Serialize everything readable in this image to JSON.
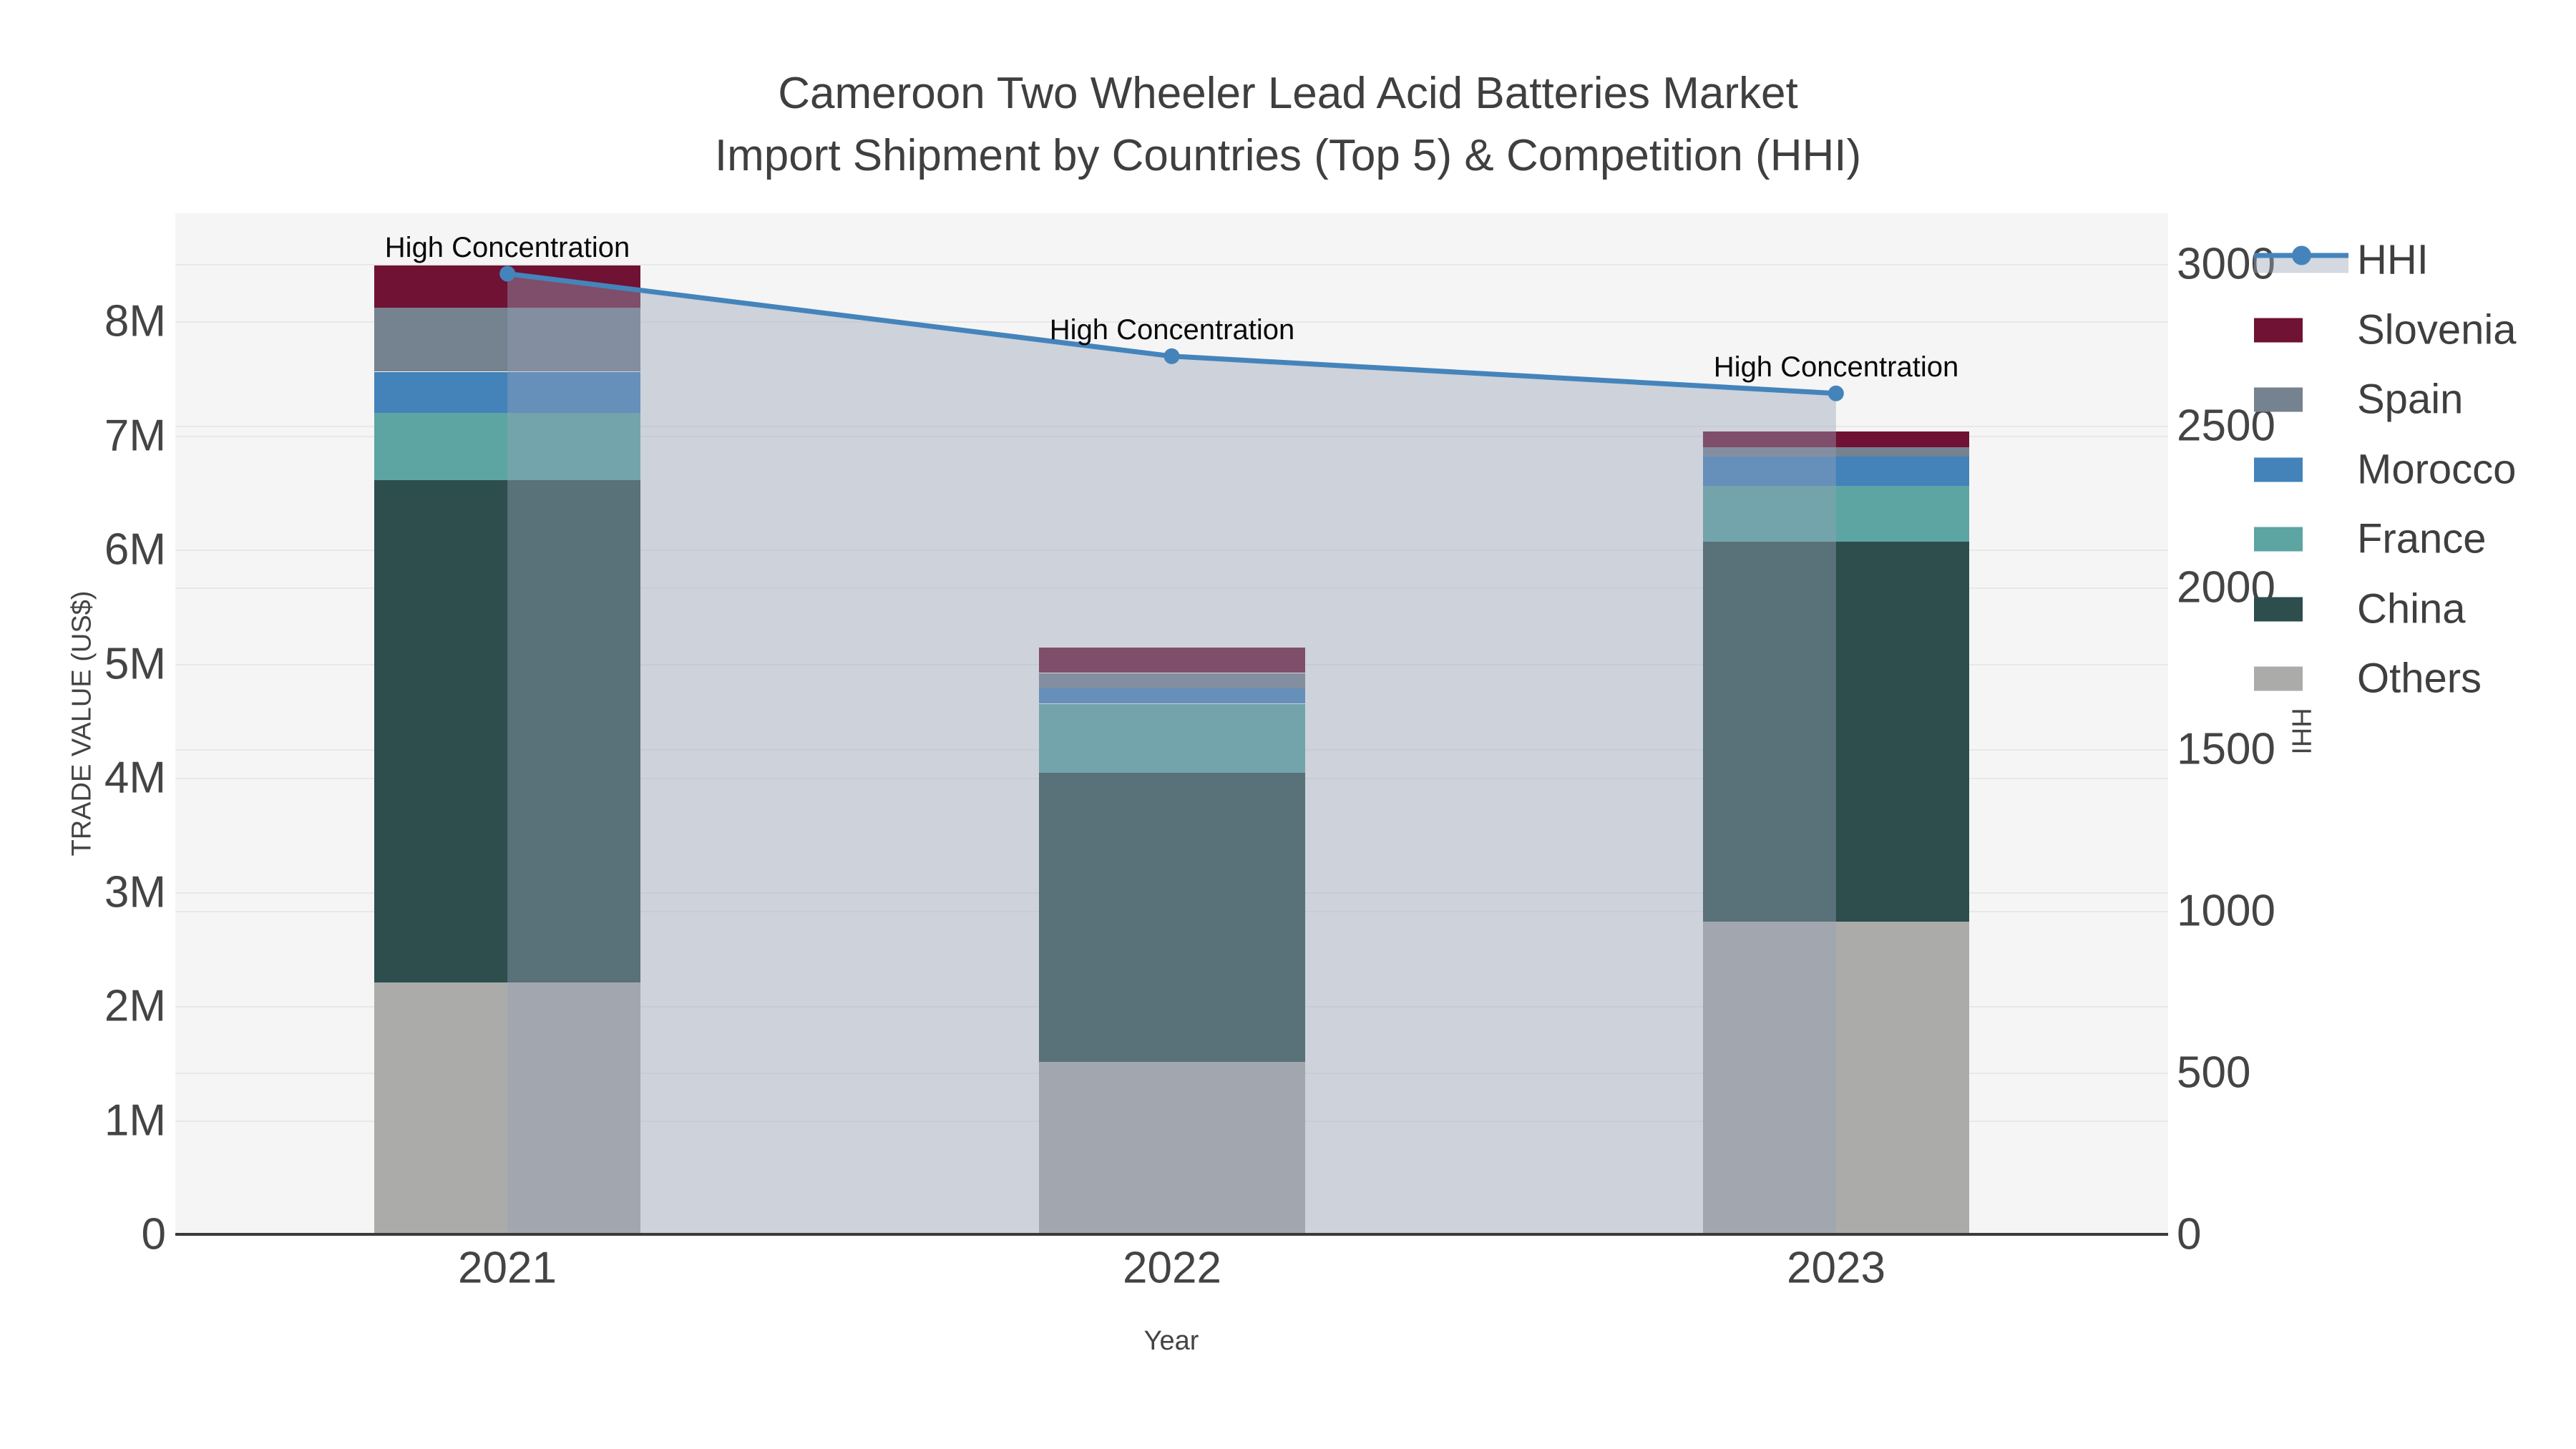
{
  "title": {
    "line1": "Cameroon Two Wheeler Lead Acid Batteries Market",
    "line2": "Import Shipment by Countries (Top 5) & Competition (HHI)"
  },
  "chart_data": {
    "type": "stacked-bar+line",
    "categories": [
      "2021",
      "2022",
      "2023"
    ],
    "bar_unit": "US$ millions",
    "series": [
      {
        "name": "Others",
        "color": "#ababa9",
        "values": [
          2.21,
          1.51,
          2.74
        ]
      },
      {
        "name": "China",
        "color": "#2d4e4d",
        "values": [
          4.4,
          2.54,
          3.33
        ]
      },
      {
        "name": "France",
        "color": "#5ca5a2",
        "values": [
          0.59,
          0.6,
          0.49
        ]
      },
      {
        "name": "Morocco",
        "color": "#4482ba",
        "values": [
          0.36,
          0.14,
          0.26
        ]
      },
      {
        "name": "Spain",
        "color": "#75828f",
        "values": [
          0.56,
          0.13,
          0.08
        ]
      },
      {
        "name": "Slovenia",
        "color": "#6f1233",
        "values": [
          0.37,
          0.22,
          0.14
        ]
      }
    ],
    "bar_totals": [
      8.49,
      5.14,
      7.04
    ],
    "line_series": {
      "name": "HHI",
      "color": "#4584bb",
      "fill_color": "rgba(150,162,184,0.42)",
      "values": [
        2970,
        2715,
        2600
      ]
    },
    "point_labels": [
      "High Concentration",
      "High Concentration",
      "High Concentration"
    ],
    "x_title": "Year",
    "y_left_title": "TRADE VALUE (US$)",
    "y_right_title": "HHI",
    "y_left_ticks": [
      "0",
      "1M",
      "2M",
      "3M",
      "4M",
      "5M",
      "6M",
      "7M",
      "8M"
    ],
    "y_left_range": [
      0,
      8.95
    ],
    "y_right_ticks": [
      "0",
      "500",
      "1000",
      "1500",
      "2000",
      "2500",
      "3000"
    ],
    "y_right_range": [
      0,
      3157
    ],
    "grid": true,
    "legend_position": "right",
    "legend_order": [
      "HHI",
      "Slovenia",
      "Spain",
      "Morocco",
      "France",
      "China",
      "Others"
    ]
  }
}
